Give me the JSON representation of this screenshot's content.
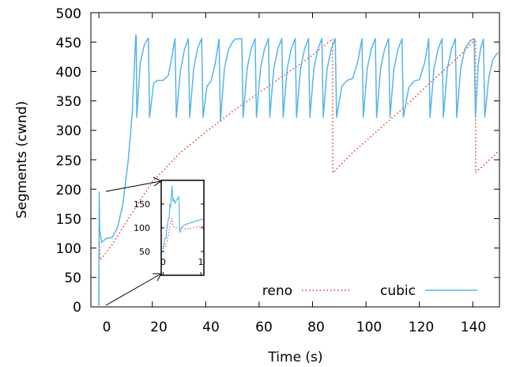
{
  "chart_data": {
    "type": "line",
    "xlabel": "Time (s)",
    "ylabel": "Segments (cwnd)",
    "xlim": [
      -3,
      150
    ],
    "ylim": [
      0,
      500
    ],
    "xticks": [
      "0",
      "20",
      "40",
      "60",
      "80",
      "100",
      "120",
      "140"
    ],
    "yticks": [
      "0",
      "50",
      "100",
      "150",
      "200",
      "250",
      "300",
      "350",
      "400",
      "450",
      "500"
    ],
    "grid": false,
    "legend": "bottom-right",
    "series": [
      {
        "name": "reno",
        "style": "dotted",
        "color": "#e8352b",
        "points": [
          [
            0,
            0
          ],
          [
            0.05,
            110
          ],
          [
            0.2,
            112
          ],
          [
            0.5,
            80
          ],
          [
            2,
            88
          ],
          [
            5,
            106
          ],
          [
            10,
            142
          ],
          [
            15,
            178
          ],
          [
            20,
            212
          ],
          [
            30,
            260
          ],
          [
            40,
            297
          ],
          [
            50,
            332
          ],
          [
            60,
            364
          ],
          [
            70,
            396
          ],
          [
            80,
            428
          ],
          [
            87.5,
            455
          ],
          [
            87.6,
            228
          ],
          [
            95,
            262
          ],
          [
            105,
            302
          ],
          [
            115,
            342
          ],
          [
            125,
            385
          ],
          [
            135,
            426
          ],
          [
            141,
            455
          ],
          [
            141.1,
            228
          ],
          [
            150,
            266
          ]
        ]
      },
      {
        "name": "cubic",
        "style": "solid",
        "color": "#56b4e9",
        "points": [
          [
            0,
            0
          ],
          [
            0.1,
            195
          ],
          [
            0.3,
            130
          ],
          [
            1,
            110
          ],
          [
            3,
            117
          ],
          [
            5,
            118
          ],
          [
            7,
            135
          ],
          [
            9,
            175
          ],
          [
            11,
            250
          ],
          [
            12.5,
            330
          ],
          [
            13.4,
            420
          ],
          [
            13.8,
            462
          ],
          [
            14,
            460
          ],
          [
            14.2,
            322
          ],
          [
            15.5,
            415
          ],
          [
            17,
            445
          ],
          [
            18.5,
            457
          ],
          [
            19,
            322
          ],
          [
            20.5,
            380
          ],
          [
            22,
            385
          ],
          [
            24,
            385
          ],
          [
            26,
            393
          ],
          [
            27.5,
            430
          ],
          [
            28.5,
            456
          ],
          [
            29,
            322
          ],
          [
            30.5,
            400
          ],
          [
            32,
            437
          ],
          [
            33.5,
            456
          ],
          [
            34,
            322
          ],
          [
            35.5,
            405
          ],
          [
            37,
            440
          ],
          [
            38.5,
            456
          ],
          [
            39,
            322
          ],
          [
            40.5,
            375
          ],
          [
            42,
            384
          ],
          [
            43.5,
            412
          ],
          [
            45,
            455
          ],
          [
            45.5,
            315
          ],
          [
            47,
            405
          ],
          [
            48.5,
            437
          ],
          [
            50,
            450
          ],
          [
            51,
            455
          ],
          [
            53.5,
            456
          ],
          [
            54,
            322
          ],
          [
            55.5,
            405
          ],
          [
            57,
            438
          ],
          [
            58.5,
            456
          ],
          [
            59,
            322
          ],
          [
            60.5,
            405
          ],
          [
            62,
            438
          ],
          [
            63.5,
            456
          ],
          [
            64,
            322
          ],
          [
            65.5,
            405
          ],
          [
            67,
            438
          ],
          [
            68.5,
            456
          ],
          [
            69,
            322
          ],
          [
            70.5,
            405
          ],
          [
            72,
            438
          ],
          [
            73.5,
            456
          ],
          [
            74,
            322
          ],
          [
            75.5,
            405
          ],
          [
            77,
            438
          ],
          [
            78.5,
            456
          ],
          [
            79,
            322
          ],
          [
            80.5,
            405
          ],
          [
            82,
            438
          ],
          [
            83.5,
            456
          ],
          [
            84,
            322
          ],
          [
            85.5,
            405
          ],
          [
            87,
            438
          ],
          [
            88.5,
            456
          ],
          [
            89,
            322
          ],
          [
            91,
            375
          ],
          [
            93,
            385
          ],
          [
            95,
            388
          ],
          [
            97,
            418
          ],
          [
            98.5,
            456
          ],
          [
            99,
            322
          ],
          [
            100.5,
            405
          ],
          [
            102,
            438
          ],
          [
            103.5,
            456
          ],
          [
            104,
            322
          ],
          [
            105.5,
            405
          ],
          [
            107,
            438
          ],
          [
            108.5,
            456
          ],
          [
            109,
            322
          ],
          [
            110.5,
            405
          ],
          [
            112,
            438
          ],
          [
            113.5,
            456
          ],
          [
            114,
            322
          ],
          [
            116,
            372
          ],
          [
            118,
            384
          ],
          [
            120,
            386
          ],
          [
            122,
            415
          ],
          [
            123.5,
            456
          ],
          [
            124,
            322
          ],
          [
            125.5,
            405
          ],
          [
            127,
            438
          ],
          [
            128.5,
            456
          ],
          [
            129,
            322
          ],
          [
            130.5,
            405
          ],
          [
            132,
            438
          ],
          [
            133.5,
            456
          ],
          [
            134,
            322
          ],
          [
            135.5,
            405
          ],
          [
            137,
            438
          ],
          [
            139,
            452
          ],
          [
            140.5,
            456
          ],
          [
            141,
            322
          ],
          [
            142,
            410
          ],
          [
            143,
            440
          ],
          [
            144,
            455
          ],
          [
            144.5,
            322
          ],
          [
            146,
            390
          ],
          [
            147.5,
            420
          ],
          [
            149,
            430
          ],
          [
            150,
            432
          ]
        ]
      }
    ],
    "inset": {
      "type": "line",
      "xticks": [
        "0",
        "1"
      ],
      "yticks": [
        "50",
        "100",
        "150"
      ],
      "xlim": [
        -0.05,
        1.08
      ],
      "ylim": [
        0,
        200
      ],
      "series": [
        {
          "name": "reno",
          "points": [
            [
              0,
              55
            ],
            [
              0.05,
              60
            ],
            [
              0.1,
              70
            ],
            [
              0.15,
              90
            ],
            [
              0.2,
              112
            ],
            [
              0.23,
              120
            ],
            [
              0.26,
              105
            ],
            [
              0.3,
              100
            ],
            [
              0.35,
              100
            ],
            [
              0.4,
              100
            ],
            [
              0.5,
              100
            ],
            [
              0.6,
              97
            ],
            [
              0.7,
              98
            ],
            [
              0.8,
              100
            ],
            [
              0.9,
              102
            ],
            [
              1.05,
              103
            ]
          ]
        },
        {
          "name": "cubic",
          "points": [
            [
              0,
              55
            ],
            [
              0.04,
              75
            ],
            [
              0.08,
              80
            ],
            [
              0.1,
              100
            ],
            [
              0.13,
              115
            ],
            [
              0.16,
              120
            ],
            [
              0.18,
              148
            ],
            [
              0.2,
              145
            ],
            [
              0.22,
              170
            ],
            [
              0.24,
              188
            ],
            [
              0.26,
              155
            ],
            [
              0.28,
              160
            ],
            [
              0.32,
              152
            ],
            [
              0.35,
              158
            ],
            [
              0.42,
              165
            ],
            [
              0.44,
              90
            ],
            [
              0.46,
              95
            ],
            [
              0.5,
              102
            ],
            [
              0.55,
              105
            ],
            [
              0.6,
              107
            ],
            [
              0.7,
              110
            ],
            [
              0.8,
              112
            ],
            [
              0.9,
              115
            ],
            [
              1.05,
              118
            ]
          ]
        }
      ]
    }
  }
}
